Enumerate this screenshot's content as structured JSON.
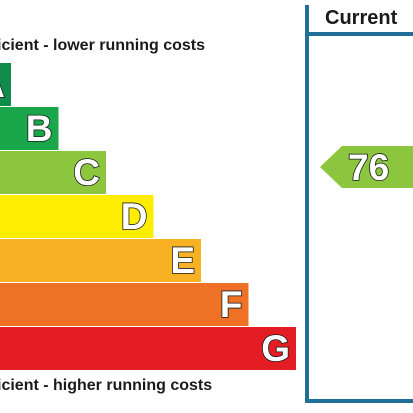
{
  "chart_data": {
    "type": "bar",
    "top_caption": "icient - lower running costs",
    "bottom_caption": "icient - higher running costs",
    "bands": [
      {
        "letter": "A",
        "color": "#0f8c4a"
      },
      {
        "letter": "B",
        "color": "#1aa64b"
      },
      {
        "letter": "C",
        "color": "#8cc63f"
      },
      {
        "letter": "D",
        "color": "#ffed00"
      },
      {
        "letter": "E",
        "color": "#f7b122"
      },
      {
        "letter": "F",
        "color": "#ef7125"
      },
      {
        "letter": "G",
        "color": "#e31d23"
      }
    ],
    "column_header": "Current",
    "current_rating": {
      "value": "76",
      "band": "C",
      "color": "#8cc63f"
    },
    "border_color": "#1f6f99"
  }
}
